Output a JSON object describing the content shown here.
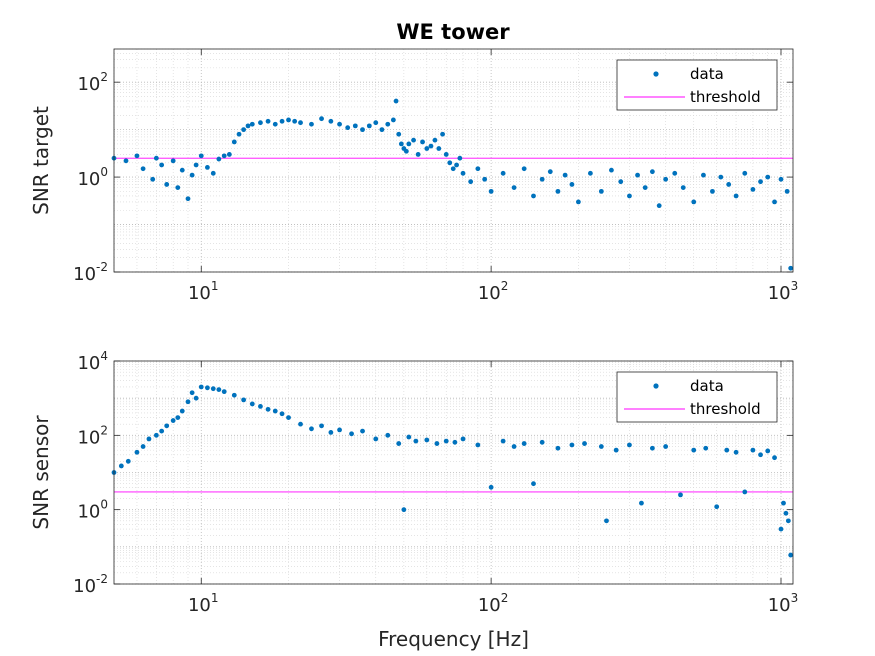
{
  "figure": {
    "title": "WE tower"
  },
  "colors": {
    "data": "#0072BD",
    "threshold": "#FF00FF",
    "axis": "#262626"
  },
  "chart_data": [
    {
      "type": "scatter",
      "title": "WE tower",
      "xlabel": "",
      "ylabel": "SNR target",
      "xscale": "log",
      "yscale": "log",
      "xlim": [
        5,
        1100
      ],
      "ylim": [
        0.01,
        500
      ],
      "grid": true,
      "legend": {
        "placement": "top-right",
        "entries": [
          "data",
          "threshold"
        ]
      },
      "xticks": [
        {
          "base": "10",
          "exp": "1",
          "value": 10
        },
        {
          "base": "10",
          "exp": "2",
          "value": 100
        },
        {
          "base": "10",
          "exp": "3",
          "value": 1000
        }
      ],
      "yticks": [
        {
          "base": "10",
          "exp": "-2",
          "value": 0.01
        },
        {
          "base": "10",
          "exp": "0",
          "value": 1
        },
        {
          "base": "10",
          "exp": "2",
          "value": 100
        }
      ],
      "threshold": 2.5,
      "series": [
        {
          "name": "data",
          "x": [
            5,
            5.5,
            6,
            6.3,
            6.8,
            7,
            7.3,
            7.6,
            8,
            8.3,
            8.6,
            9,
            9.3,
            9.6,
            10,
            10.5,
            11,
            11.5,
            12,
            12.5,
            13,
            13.5,
            14,
            14.5,
            15,
            16,
            17,
            18,
            19,
            20,
            21,
            22,
            24,
            26,
            28,
            30,
            32,
            34,
            36,
            38,
            40,
            42,
            44,
            46,
            47,
            48,
            49,
            50,
            51,
            52,
            54,
            56,
            58,
            60,
            62,
            64,
            66,
            68,
            70,
            72,
            74,
            76,
            78,
            80,
            85,
            90,
            95,
            100,
            110,
            120,
            130,
            140,
            150,
            160,
            170,
            180,
            190,
            200,
            220,
            240,
            260,
            280,
            300,
            320,
            340,
            360,
            380,
            400,
            430,
            460,
            500,
            540,
            580,
            620,
            660,
            700,
            750,
            800,
            850,
            900,
            950,
            1000,
            1050,
            1080
          ],
          "y": [
            2.5,
            2.2,
            2.8,
            1.5,
            0.9,
            2.5,
            1.8,
            0.7,
            2.2,
            0.6,
            1.4,
            0.35,
            1.1,
            1.8,
            2.8,
            1.6,
            1.2,
            2.4,
            2.8,
            3,
            5.5,
            8,
            10,
            12,
            13,
            14,
            15,
            13,
            15,
            16,
            15,
            14,
            13,
            17,
            15,
            13,
            11,
            12,
            10,
            12,
            14,
            10,
            13,
            16,
            40,
            8,
            5,
            4,
            3.5,
            5,
            6,
            3,
            5.5,
            4,
            4.5,
            6,
            4,
            8,
            3,
            2,
            1.5,
            1.8,
            2.5,
            1.2,
            0.8,
            1.5,
            0.9,
            0.5,
            1.2,
            0.6,
            1.5,
            0.4,
            0.9,
            1.3,
            0.5,
            1.1,
            0.7,
            0.3,
            1.2,
            0.5,
            1.4,
            0.8,
            0.4,
            1.1,
            0.6,
            1.3,
            0.25,
            0.9,
            1.2,
            0.6,
            0.3,
            1.1,
            0.5,
            1.0,
            0.7,
            0.4,
            1.2,
            0.55,
            0.8,
            1.0,
            0.3,
            0.9,
            0.5,
            0.012
          ]
        },
        {
          "name": "threshold",
          "x": [
            5,
            1100
          ],
          "y": [
            2.5,
            2.5
          ]
        }
      ]
    },
    {
      "type": "scatter",
      "title": "",
      "xlabel": "Frequency [Hz]",
      "ylabel": "SNR sensor",
      "xscale": "log",
      "yscale": "log",
      "xlim": [
        5,
        1100
      ],
      "ylim": [
        0.01,
        10000
      ],
      "grid": true,
      "legend": {
        "placement": "top-right",
        "entries": [
          "data",
          "threshold"
        ]
      },
      "xticks": [
        {
          "base": "10",
          "exp": "1",
          "value": 10
        },
        {
          "base": "10",
          "exp": "2",
          "value": 100
        },
        {
          "base": "10",
          "exp": "3",
          "value": 1000
        }
      ],
      "yticks": [
        {
          "base": "10",
          "exp": "-2",
          "value": 0.01
        },
        {
          "base": "10",
          "exp": "0",
          "value": 1
        },
        {
          "base": "10",
          "exp": "2",
          "value": 100
        },
        {
          "base": "10",
          "exp": "4",
          "value": 10000
        }
      ],
      "threshold": 3,
      "series": [
        {
          "name": "data",
          "x": [
            5,
            5.3,
            5.6,
            6,
            6.3,
            6.6,
            7,
            7.3,
            7.6,
            8,
            8.3,
            8.6,
            9,
            9.3,
            9.6,
            10,
            10.5,
            11,
            11.5,
            12,
            13,
            14,
            15,
            16,
            17,
            18,
            19,
            20,
            22,
            24,
            26,
            28,
            30,
            33,
            36,
            40,
            44,
            48,
            50,
            52,
            55,
            60,
            65,
            70,
            75,
            80,
            90,
            100,
            110,
            120,
            130,
            140,
            150,
            170,
            190,
            210,
            240,
            250,
            270,
            300,
            330,
            360,
            400,
            450,
            500,
            550,
            600,
            650,
            700,
            750,
            800,
            850,
            900,
            950,
            1000,
            1020,
            1040,
            1060,
            1080
          ],
          "y": [
            10,
            15,
            20,
            35,
            50,
            80,
            100,
            130,
            180,
            250,
            300,
            450,
            800,
            1400,
            1000,
            2000,
            1900,
            1800,
            1700,
            1500,
            1200,
            900,
            700,
            600,
            500,
            450,
            380,
            300,
            200,
            150,
            180,
            120,
            140,
            110,
            130,
            80,
            100,
            60,
            1.0,
            90,
            70,
            75,
            60,
            70,
            65,
            80,
            55,
            4.0,
            70,
            50,
            60,
            5.0,
            65,
            45,
            55,
            60,
            50,
            0.5,
            40,
            55,
            1.5,
            45,
            50,
            2.5,
            40,
            45,
            1.2,
            40,
            35,
            3.0,
            40,
            30,
            38,
            25,
            0.3,
            1.5,
            0.8,
            0.5,
            0.06
          ]
        },
        {
          "name": "threshold",
          "x": [
            5,
            1100
          ],
          "y": [
            3,
            3
          ]
        }
      ]
    }
  ]
}
